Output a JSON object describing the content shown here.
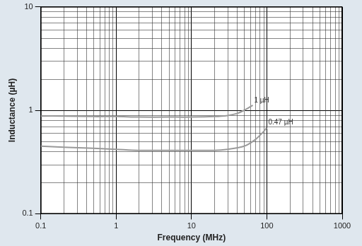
{
  "chart_data": {
    "type": "line",
    "x_label": "Frequency (MHz)",
    "y_label": "Inductance (µH)",
    "log": true,
    "grid": true,
    "xlim": [
      0.1,
      1000
    ],
    "xticks": [
      0.1,
      1,
      10,
      100,
      1000
    ],
    "ylim": [
      0.1,
      10
    ],
    "yticks": [
      0.1,
      1,
      10
    ],
    "series": [
      {
        "name": "1 µH",
        "color": "#9a9a9a",
        "x": [
          0.1,
          0.2,
          0.5,
          1,
          2,
          5,
          10,
          20,
          30,
          40,
          50,
          65
        ],
        "values": [
          0.88,
          0.88,
          0.87,
          0.87,
          0.86,
          0.86,
          0.86,
          0.87,
          0.89,
          0.93,
          1.0,
          1.12
        ]
      },
      {
        "name": "0.47 µH",
        "color": "#9a9a9a",
        "x": [
          0.1,
          0.2,
          0.5,
          1,
          2,
          5,
          10,
          20,
          30,
          50,
          70,
          90,
          100
        ],
        "values": [
          0.45,
          0.44,
          0.43,
          0.42,
          0.41,
          0.41,
          0.41,
          0.41,
          0.42,
          0.45,
          0.52,
          0.62,
          0.68
        ]
      }
    ]
  }
}
